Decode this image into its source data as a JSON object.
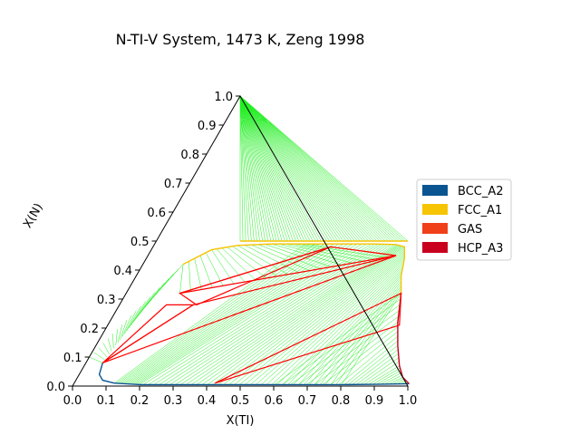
{
  "chart_data": {
    "type": "ternary-phase-diagram",
    "title": "N-TI-V System, 1473 K, Zeng 1998",
    "xlabel": "X(TI)",
    "ylabel": "X(N)",
    "xlim": [
      0.0,
      1.0
    ],
    "ylim": [
      0.0,
      1.0
    ],
    "x_ticks": [
      "0.0",
      "0.1",
      "0.2",
      "0.3",
      "0.4",
      "0.5",
      "0.6",
      "0.7",
      "0.8",
      "0.9",
      "1.0"
    ],
    "y_ticks": [
      "0.0",
      "0.1",
      "0.2",
      "0.3",
      "0.4",
      "0.5",
      "0.6",
      "0.7",
      "0.8",
      "0.9",
      "1.0"
    ],
    "legend_position": "right",
    "legend": [
      {
        "name": "BCC_A2",
        "color": "#0a5591"
      },
      {
        "name": "FCC_A1",
        "color": "#f6c400"
      },
      {
        "name": "GAS",
        "color": "#f0401a"
      },
      {
        "name": "HCP_A3",
        "color": "#c8001e"
      }
    ],
    "tie_line_color": "#22ee22",
    "three_phase_color": "#ff0000",
    "phase_boundaries": {
      "BCC_A2": [
        [
          0.05,
          0.08
        ],
        [
          0.06,
          0.04
        ],
        [
          0.08,
          0.02
        ],
        [
          0.12,
          0.01
        ],
        [
          0.2,
          0.005
        ],
        [
          0.4,
          0.005
        ],
        [
          0.6,
          0.005
        ],
        [
          0.8,
          0.005
        ],
        [
          0.9,
          0.006
        ],
        [
          1.0,
          0.008
        ]
      ],
      "FCC_A1_lower": [
        [
          0.12,
          0.42
        ],
        [
          0.18,
          0.47
        ],
        [
          0.25,
          0.485
        ],
        [
          0.35,
          0.49
        ],
        [
          0.45,
          0.49
        ],
        [
          0.55,
          0.49
        ],
        [
          0.65,
          0.49
        ],
        [
          0.72,
          0.488
        ],
        [
          0.75,
          0.48
        ],
        [
          0.77,
          0.44
        ],
        [
          0.79,
          0.38
        ],
        [
          0.82,
          0.32
        ]
      ],
      "FCC_A1_upper": [
        [
          0.25,
          0.5
        ],
        [
          0.75,
          0.5
        ]
      ],
      "HCP_A3": [
        [
          0.82,
          0.32
        ],
        [
          0.86,
          0.22
        ],
        [
          0.9,
          0.14
        ],
        [
          0.94,
          0.07
        ],
        [
          0.97,
          0.03
        ],
        [
          1.0,
          0.008
        ]
      ]
    },
    "three_phase_triangles": [
      [
        [
          0.05,
          0.08
        ],
        [
          0.14,
          0.28
        ],
        [
          0.22,
          0.28
        ]
      ],
      [
        [
          0.16,
          0.32
        ],
        [
          0.23,
          0.28
        ],
        [
          0.53,
          0.48
        ]
      ],
      [
        [
          0.16,
          0.32
        ],
        [
          0.53,
          0.48
        ],
        [
          0.74,
          0.45
        ]
      ],
      [
        [
          0.05,
          0.08
        ],
        [
          0.22,
          0.28
        ],
        [
          0.74,
          0.45
        ]
      ],
      [
        [
          0.42,
          0.01
        ],
        [
          0.82,
          0.32
        ],
        [
          0.87,
          0.21
        ]
      ]
    ]
  }
}
